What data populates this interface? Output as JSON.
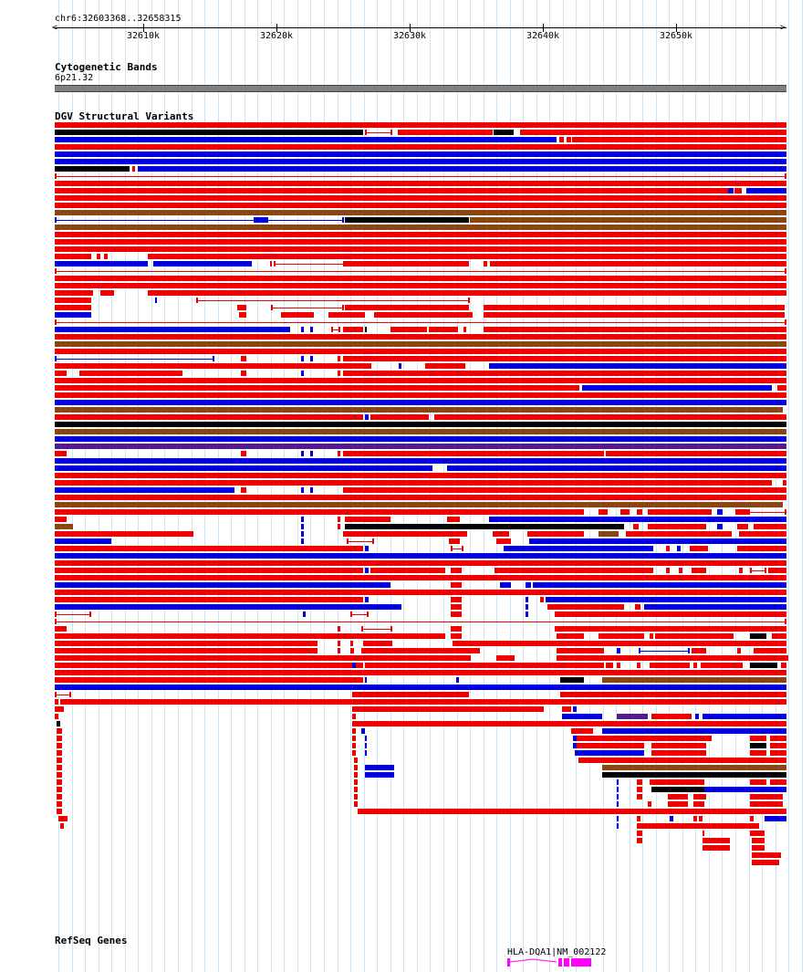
{
  "location": "chr6:32603368..32658315",
  "ruler": {
    "ticks": [
      "32610k",
      "32620k",
      "32630k",
      "32640k",
      "32650k"
    ],
    "tick_values": [
      32610000,
      32620000,
      32630000,
      32640000,
      32650000
    ],
    "start": 32603368,
    "end": 32658315
  },
  "cytoband": {
    "title": "Cytogenetic Bands",
    "band": "6p21.32",
    "color": "#808080"
  },
  "dgv": {
    "title": "DGV Structural Variants",
    "colors": {
      "gain": "#ee0000",
      "loss": "#0000dd",
      "complex": "#8b4513",
      "inversion": "#000000",
      "other": "#551a8b"
    }
  },
  "refseq": {
    "title": "RefSeq Genes",
    "gene_label": "HLA-DQA1|NM_002122",
    "color": "#ff00ff"
  }
}
